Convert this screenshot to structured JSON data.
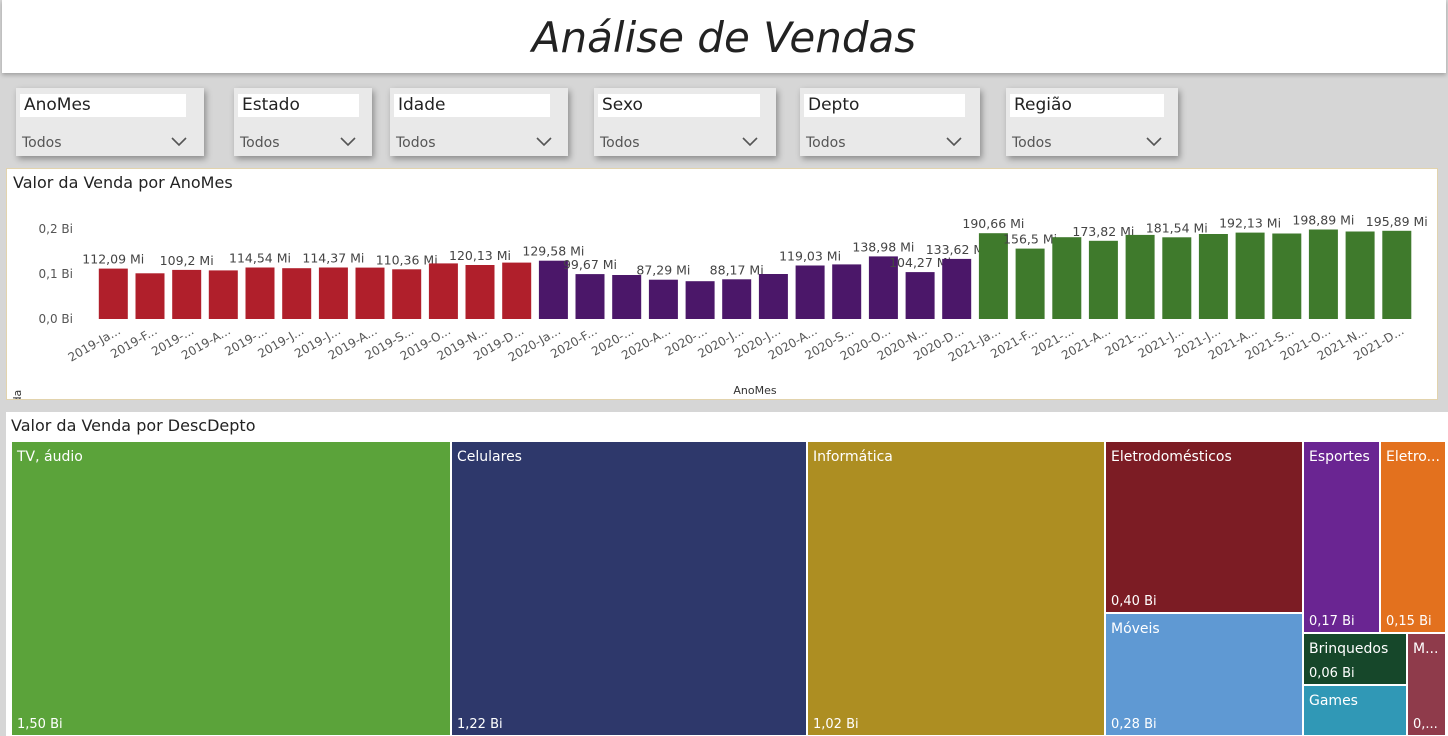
{
  "title": "Análise de Vendas",
  "slicers": [
    {
      "label": "AnoMes",
      "value": "Todos"
    },
    {
      "label": "Estado",
      "value": "Todos"
    },
    {
      "label": "Idade",
      "value": "Todos"
    },
    {
      "label": "Sexo",
      "value": "Todos"
    },
    {
      "label": "Depto",
      "value": "Todos"
    },
    {
      "label": "Região",
      "value": "Todos"
    }
  ],
  "chart_data": [
    {
      "type": "bar",
      "title": "Valor da Venda por AnoMes",
      "xlabel": "AnoMes",
      "ylabel": "Valor da Venda",
      "yticks": [
        "0,0 Bi",
        "0,1 Bi",
        "0,2 Bi"
      ],
      "ylim": [
        0,
        0.2
      ],
      "unit": "Bi",
      "categories": [
        "2019-Ja...",
        "2019-F...",
        "2019-...",
        "2019-A...",
        "2019-...",
        "2019-J...",
        "2019-J...",
        "2019-A...",
        "2019-S...",
        "2019-O...",
        "2019-N...",
        "2019-D...",
        "2020-Ja...",
        "2020-F...",
        "2020-...",
        "2020-A...",
        "2020-...",
        "2020-J...",
        "2020-J...",
        "2020-A...",
        "2020-S...",
        "2020-O...",
        "2020-N...",
        "2020-D...",
        "2021-Ja...",
        "2021-F...",
        "2021-...",
        "2021-A...",
        "2021-...",
        "2021-J...",
        "2021-J...",
        "2021-A...",
        "2021-S...",
        "2021-O...",
        "2021-N...",
        "2021-D..."
      ],
      "values": [
        0.1121,
        0.1016,
        0.1092,
        0.108,
        0.1145,
        0.113,
        0.1144,
        0.1142,
        0.1104,
        0.1235,
        0.1201,
        0.1254,
        0.1296,
        0.0997,
        0.0978,
        0.0873,
        0.084,
        0.0882,
        0.1,
        0.119,
        0.1213,
        0.139,
        0.1043,
        0.1336,
        0.1907,
        0.1565,
        0.1818,
        0.1738,
        0.187,
        0.1815,
        0.189,
        0.1921,
        0.19,
        0.1989,
        0.1945,
        0.1959
      ],
      "colors": [
        "#b01f2b",
        "#b01f2b",
        "#b01f2b",
        "#b01f2b",
        "#b01f2b",
        "#b01f2b",
        "#b01f2b",
        "#b01f2b",
        "#b01f2b",
        "#b01f2b",
        "#b01f2b",
        "#b01f2b",
        "#4b1769",
        "#4b1769",
        "#4b1769",
        "#4b1769",
        "#4b1769",
        "#4b1769",
        "#4b1769",
        "#4b1769",
        "#4b1769",
        "#4b1769",
        "#4b1769",
        "#4b1769",
        "#3f7a2c",
        "#3f7a2c",
        "#3f7a2c",
        "#3f7a2c",
        "#3f7a2c",
        "#3f7a2c",
        "#3f7a2c",
        "#3f7a2c",
        "#3f7a2c",
        "#3f7a2c",
        "#3f7a2c",
        "#3f7a2c"
      ],
      "data_labels": [
        "112,09 Mi",
        "",
        "109,2 Mi",
        "",
        "114,54 Mi",
        "",
        "114,37 Mi",
        "",
        "110,36 Mi",
        "",
        "120,13 Mi",
        "",
        "129,58 Mi",
        "99,67 Mi",
        "",
        "87,29 Mi",
        "",
        "88,17 Mi",
        "",
        "119,03 Mi",
        "",
        "138,98 Mi",
        "104,27 Mi",
        "133,62 Mi",
        "190,66 Mi",
        "156,5 Mi",
        "",
        "173,82 Mi",
        "",
        "181,54 Mi",
        "",
        "192,13 Mi",
        "",
        "198,89 Mi",
        "",
        "195,89 Mi"
      ]
    },
    {
      "type": "treemap",
      "title": "Valor da Venda por DescDepto",
      "unit": "Bi",
      "tiles": [
        {
          "name": "TV, áudio",
          "value": 1.5,
          "value_label": "1,50 Bi",
          "color": "#5ba33a"
        },
        {
          "name": "Celulares",
          "value": 1.22,
          "value_label": "1,22 Bi",
          "color": "#2e386b"
        },
        {
          "name": "Informática",
          "value": 1.02,
          "value_label": "1,02 Bi",
          "color": "#ad8e22"
        },
        {
          "name": "Eletrodomésticos",
          "value": 0.4,
          "value_label": "0,40 Bi",
          "color": "#7c1c24"
        },
        {
          "name": "Móveis",
          "value": 0.28,
          "value_label": "0,28 Bi",
          "color": "#5f99d3"
        },
        {
          "name": "Esportes",
          "value": 0.17,
          "value_label": "0,17 Bi",
          "color": "#6a2592"
        },
        {
          "name": "Eletro...",
          "value": 0.15,
          "value_label": "0,15 Bi",
          "color": "#e3711e"
        },
        {
          "name": "Brinquedos",
          "value": 0.06,
          "value_label": "0,06 Bi",
          "color": "#16472a"
        },
        {
          "name": "Games",
          "value": null,
          "value_label": "",
          "color": "#3098b6"
        },
        {
          "name": "M...",
          "value": null,
          "value_label": "0,...",
          "color": "#8f3b4b"
        }
      ]
    }
  ]
}
